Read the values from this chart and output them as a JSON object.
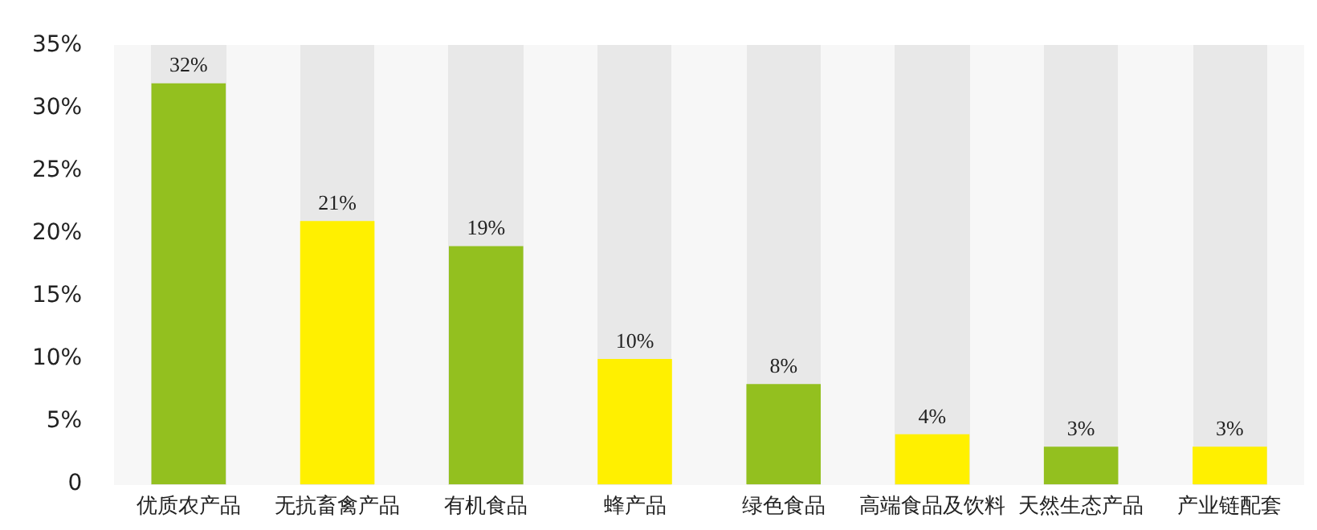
{
  "chart_data": {
    "type": "bar",
    "categories": [
      "优质农产品",
      "无抗畜禽产品",
      "有机食品",
      "蜂产品",
      "绿色食品",
      "高端食品及饮料",
      "天然生态产品",
      "产业链配套"
    ],
    "values": [
      32,
      21,
      19,
      10,
      8,
      4,
      3,
      3
    ],
    "value_labels": [
      "32%",
      "21%",
      "19%",
      "10%",
      "8%",
      "4%",
      "3%",
      "3%"
    ],
    "colors": [
      "#93c01f",
      "#fff000",
      "#93c01f",
      "#fff000",
      "#93c01f",
      "#fff000",
      "#93c01f",
      "#fff000"
    ],
    "ylim": [
      0,
      35
    ],
    "yticks": [
      {
        "value": 0,
        "label": "0"
      },
      {
        "value": 5,
        "label": "5%"
      },
      {
        "value": 10,
        "label": "10%"
      },
      {
        "value": 15,
        "label": "15%"
      },
      {
        "value": 20,
        "label": "20%"
      },
      {
        "value": 25,
        "label": "25%"
      },
      {
        "value": 30,
        "label": "30%"
      },
      {
        "value": 35,
        "label": "35%"
      }
    ],
    "grid": false,
    "legend": false
  }
}
